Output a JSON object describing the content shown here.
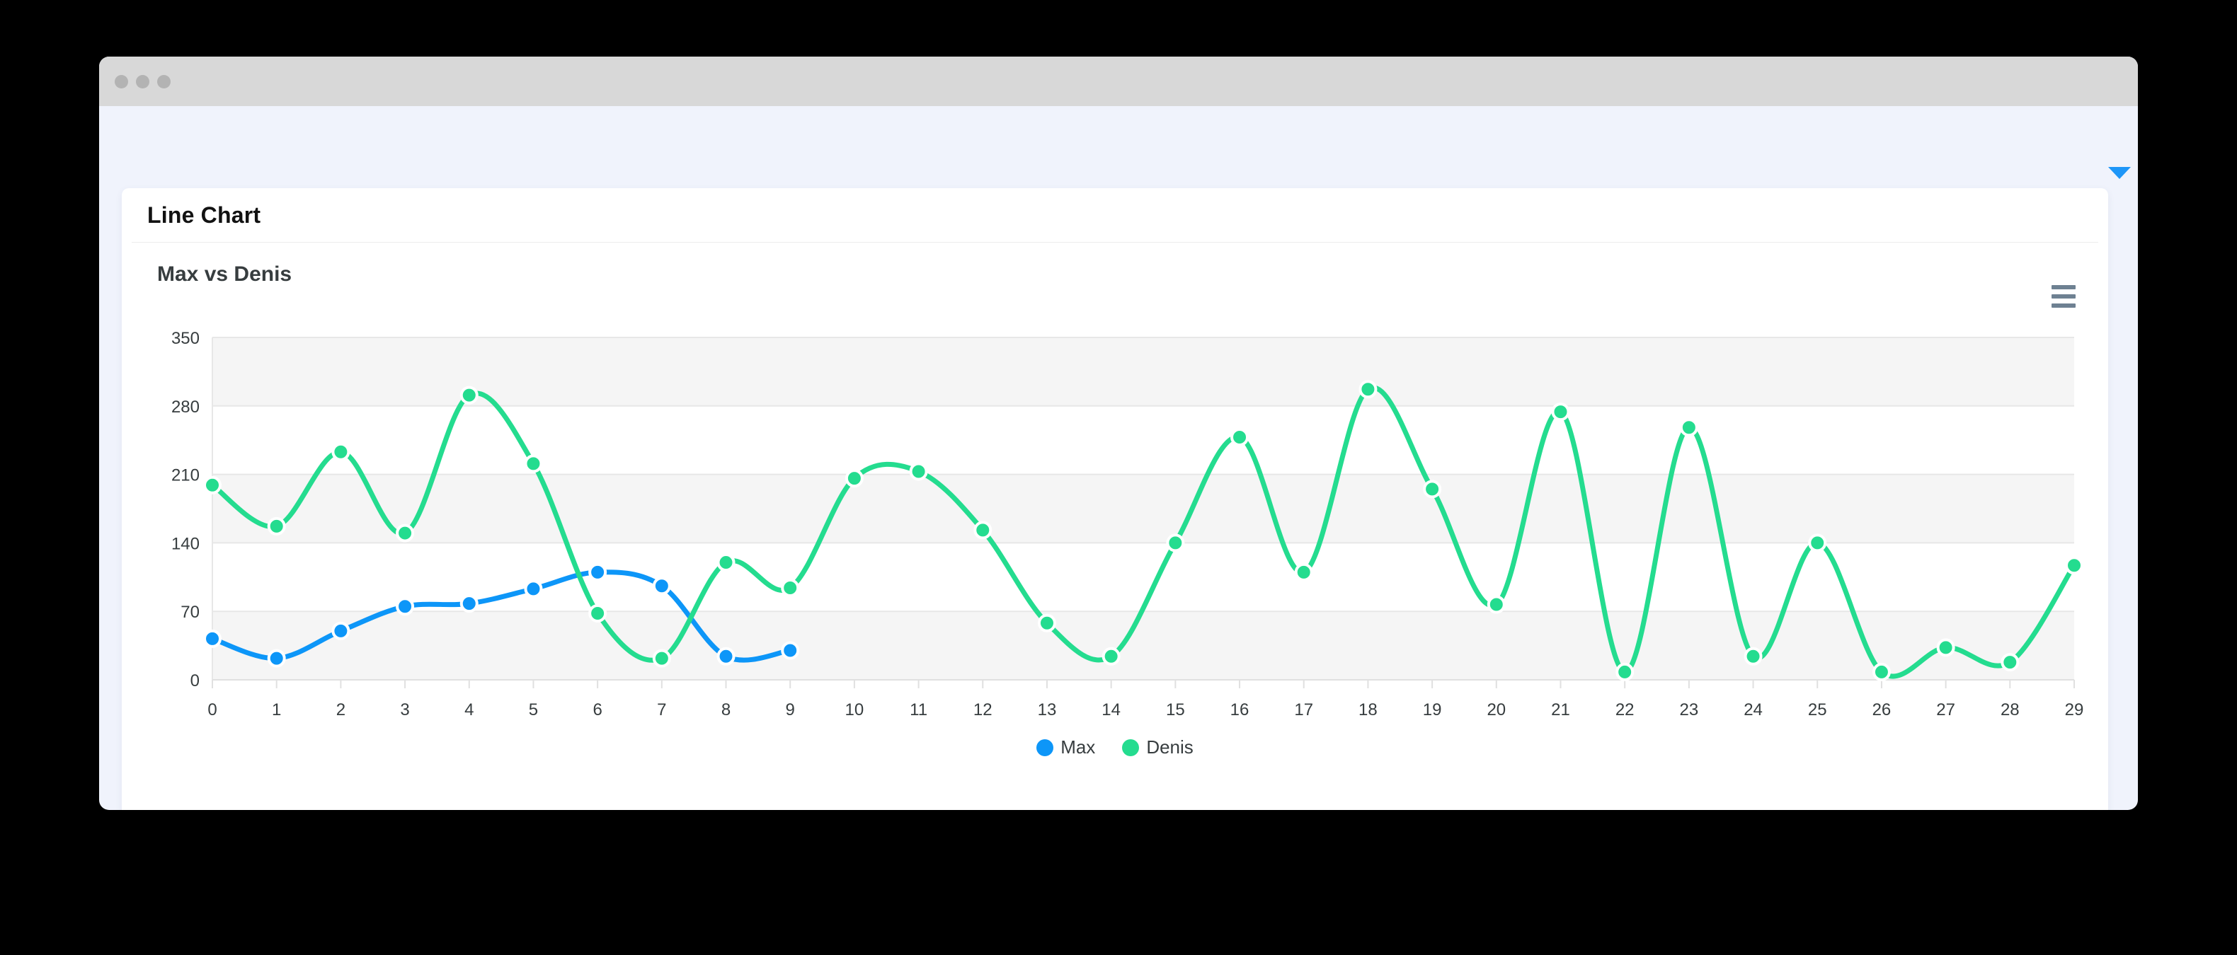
{
  "window": {
    "titlebar_buttons": [
      "close",
      "minimize",
      "maximize"
    ],
    "dropdown_icon": "blue-down-triangle",
    "dropdown_color": "#1e96f8"
  },
  "card": {
    "title": "Line Chart"
  },
  "chart": {
    "title": "Max vs Denis",
    "menu_icon": "hamburger-menu",
    "menu_color": "#6e8192"
  },
  "chart_data": {
    "type": "line",
    "title": "Max vs Denis",
    "curve": "smooth",
    "x": [
      0,
      1,
      2,
      3,
      4,
      5,
      6,
      7,
      8,
      9,
      10,
      11,
      12,
      13,
      14,
      15,
      16,
      17,
      18,
      19,
      20,
      21,
      22,
      23,
      24,
      25,
      26,
      27,
      28,
      29
    ],
    "series": [
      {
        "name": "Max",
        "color": "#0d96f8",
        "values": [
          42,
          22,
          50,
          75,
          78,
          93,
          110,
          96,
          24,
          30
        ]
      },
      {
        "name": "Denis",
        "color": "#24dc8f",
        "values": [
          199,
          157,
          233,
          150,
          291,
          221,
          68,
          22,
          120,
          94,
          206,
          213,
          153,
          58,
          24,
          140,
          248,
          110,
          297,
          195,
          77,
          274,
          8,
          258,
          24,
          140,
          8,
          33,
          18,
          117
        ]
      }
    ],
    "ylim": [
      0,
      350
    ],
    "yticks": [
      0,
      70,
      140,
      210,
      280,
      350
    ],
    "xtick_labels": [
      "0",
      "1",
      "2",
      "3",
      "4",
      "5",
      "6",
      "7",
      "8",
      "9",
      "10",
      "11",
      "12",
      "13",
      "14",
      "15",
      "16",
      "17",
      "18",
      "19",
      "20",
      "21",
      "22",
      "23",
      "24",
      "25",
      "26",
      "27",
      "28",
      "29"
    ],
    "legend_position": "bottom",
    "legend_labels": [
      "Max",
      "Denis"
    ],
    "grid": {
      "horizontal_lines": true,
      "row_stripes": true,
      "stripe_color": "#f5f5f5",
      "line_color": "#e7e7e7",
      "axis_border_color": "#e0e0e0"
    },
    "label_color": "#373d3f",
    "marker_radius": 11,
    "stroke_width": 7
  }
}
